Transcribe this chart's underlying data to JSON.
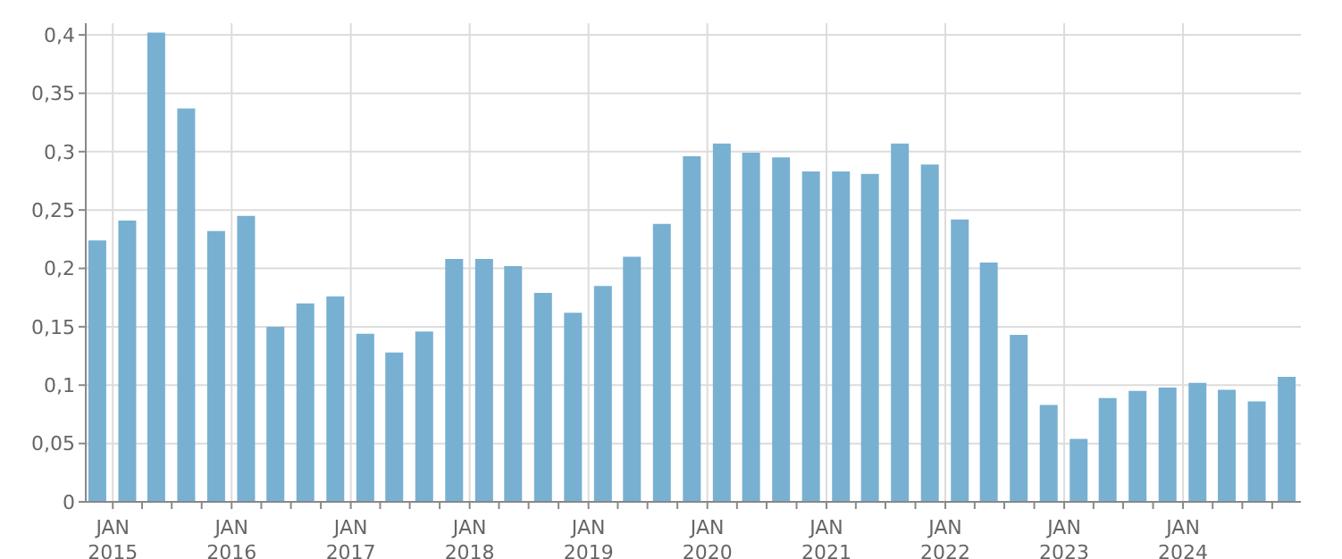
{
  "chart_data": {
    "type": "bar",
    "color": "#78b0d2",
    "x": [
      "2014-11-15",
      "2015-02-15",
      "2015-05-15",
      "2015-08-15",
      "2015-11-15",
      "2016-02-15",
      "2016-05-15",
      "2016-08-15",
      "2016-11-15",
      "2017-02-15",
      "2017-05-15",
      "2017-08-15",
      "2017-11-15",
      "2018-02-15",
      "2018-05-15",
      "2018-08-15",
      "2018-11-15",
      "2019-02-15",
      "2019-05-15",
      "2019-08-15",
      "2019-11-15",
      "2020-02-15",
      "2020-05-15",
      "2020-08-15",
      "2020-11-15",
      "2021-02-15",
      "2021-05-15",
      "2021-08-15",
      "2021-11-15",
      "2022-02-15",
      "2022-05-15",
      "2022-08-15",
      "2022-11-15",
      "2023-02-15",
      "2023-05-15",
      "2023-08-15",
      "2023-11-15",
      "2024-02-15",
      "2024-05-15",
      "2024-08-15",
      "2024-11-15"
    ],
    "values": [
      0.224,
      0.241,
      0.402,
      0.337,
      0.232,
      0.245,
      0.15,
      0.17,
      0.176,
      0.144,
      0.128,
      0.146,
      0.208,
      0.208,
      0.202,
      0.179,
      0.162,
      0.185,
      0.21,
      0.238,
      0.296,
      0.307,
      0.299,
      0.295,
      0.283,
      0.283,
      0.281,
      0.307,
      0.289,
      0.242,
      0.205,
      0.143,
      0.083,
      0.054,
      0.089,
      0.095,
      0.098,
      0.102,
      0.096,
      0.086,
      0.107
    ],
    "xlim": [
      "2014-10-10",
      "2024-12-28"
    ],
    "xticks": [
      {
        "value": "2015-01-01",
        "label": "JAN 2015"
      },
      {
        "value": "2015-04-01",
        "label": null
      },
      {
        "value": "2015-07-01",
        "label": null
      },
      {
        "value": "2015-10-01",
        "label": null
      },
      {
        "value": "2016-01-01",
        "label": "JAN 2016"
      },
      {
        "value": "2016-04-01",
        "label": null
      },
      {
        "value": "2016-07-01",
        "label": null
      },
      {
        "value": "2016-10-01",
        "label": null
      },
      {
        "value": "2017-01-01",
        "label": "JAN 2017"
      },
      {
        "value": "2017-04-01",
        "label": null
      },
      {
        "value": "2017-07-01",
        "label": null
      },
      {
        "value": "2017-10-01",
        "label": null
      },
      {
        "value": "2018-01-01",
        "label": "JAN 2018"
      },
      {
        "value": "2018-04-01",
        "label": null
      },
      {
        "value": "2018-07-01",
        "label": null
      },
      {
        "value": "2018-10-01",
        "label": null
      },
      {
        "value": "2019-01-01",
        "label": "JAN 2019"
      },
      {
        "value": "2019-04-01",
        "label": null
      },
      {
        "value": "2019-07-01",
        "label": null
      },
      {
        "value": "2019-10-01",
        "label": null
      },
      {
        "value": "2020-01-01",
        "label": "JAN 2020"
      },
      {
        "value": "2020-04-01",
        "label": null
      },
      {
        "value": "2020-07-01",
        "label": null
      },
      {
        "value": "2020-10-01",
        "label": null
      },
      {
        "value": "2021-01-01",
        "label": "JAN 2021"
      },
      {
        "value": "2021-04-01",
        "label": null
      },
      {
        "value": "2021-07-01",
        "label": null
      },
      {
        "value": "2021-10-01",
        "label": null
      },
      {
        "value": "2022-01-01",
        "label": "JAN 2022"
      },
      {
        "value": "2022-04-01",
        "label": null
      },
      {
        "value": "2022-07-01",
        "label": null
      },
      {
        "value": "2022-10-01",
        "label": null
      },
      {
        "value": "2023-01-01",
        "label": "JAN 2023"
      },
      {
        "value": "2023-04-01",
        "label": null
      },
      {
        "value": "2023-07-01",
        "label": null
      },
      {
        "value": "2023-10-01",
        "label": null
      },
      {
        "value": "2024-01-01",
        "label": "JAN 2024"
      },
      {
        "value": "2024-04-01",
        "label": null
      },
      {
        "value": "2024-07-01",
        "label": null
      },
      {
        "value": "2024-10-01",
        "label": null
      }
    ],
    "ylim": [
      0,
      0.41
    ],
    "yticks": [
      0,
      {
        "value": 0.05,
        "label": "0,05"
      },
      {
        "value": 0.1,
        "label": "0,1"
      },
      {
        "value": 0.15,
        "label": "0,15"
      },
      {
        "value": 0.2,
        "label": "0,2"
      },
      {
        "value": 0.25,
        "label": "0,25"
      },
      {
        "value": 0.3,
        "label": "0,3"
      },
      {
        "value": 0.35,
        "label": "0,35"
      },
      {
        "value": 0.4,
        "label": "0,4"
      }
    ],
    "grid": true
  }
}
